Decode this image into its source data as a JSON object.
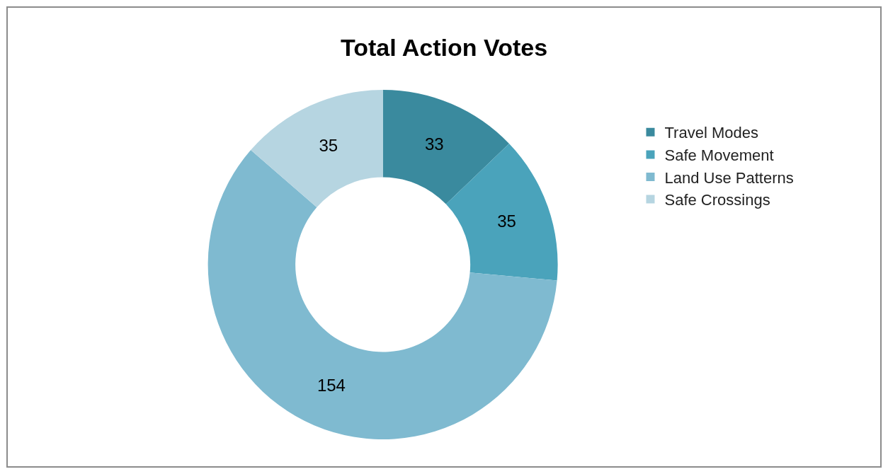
{
  "chart_data": {
    "type": "donut",
    "title": "Total Action Votes",
    "categories": [
      "Travel Modes",
      "Safe Movement",
      "Land Use Patterns",
      "Safe Crossings"
    ],
    "values": [
      33,
      35,
      154,
      35
    ],
    "colors": [
      "#3a8a9e",
      "#4aa3bb",
      "#7fbad0",
      "#b6d5e1"
    ],
    "data_labels": true,
    "legend": "right"
  }
}
